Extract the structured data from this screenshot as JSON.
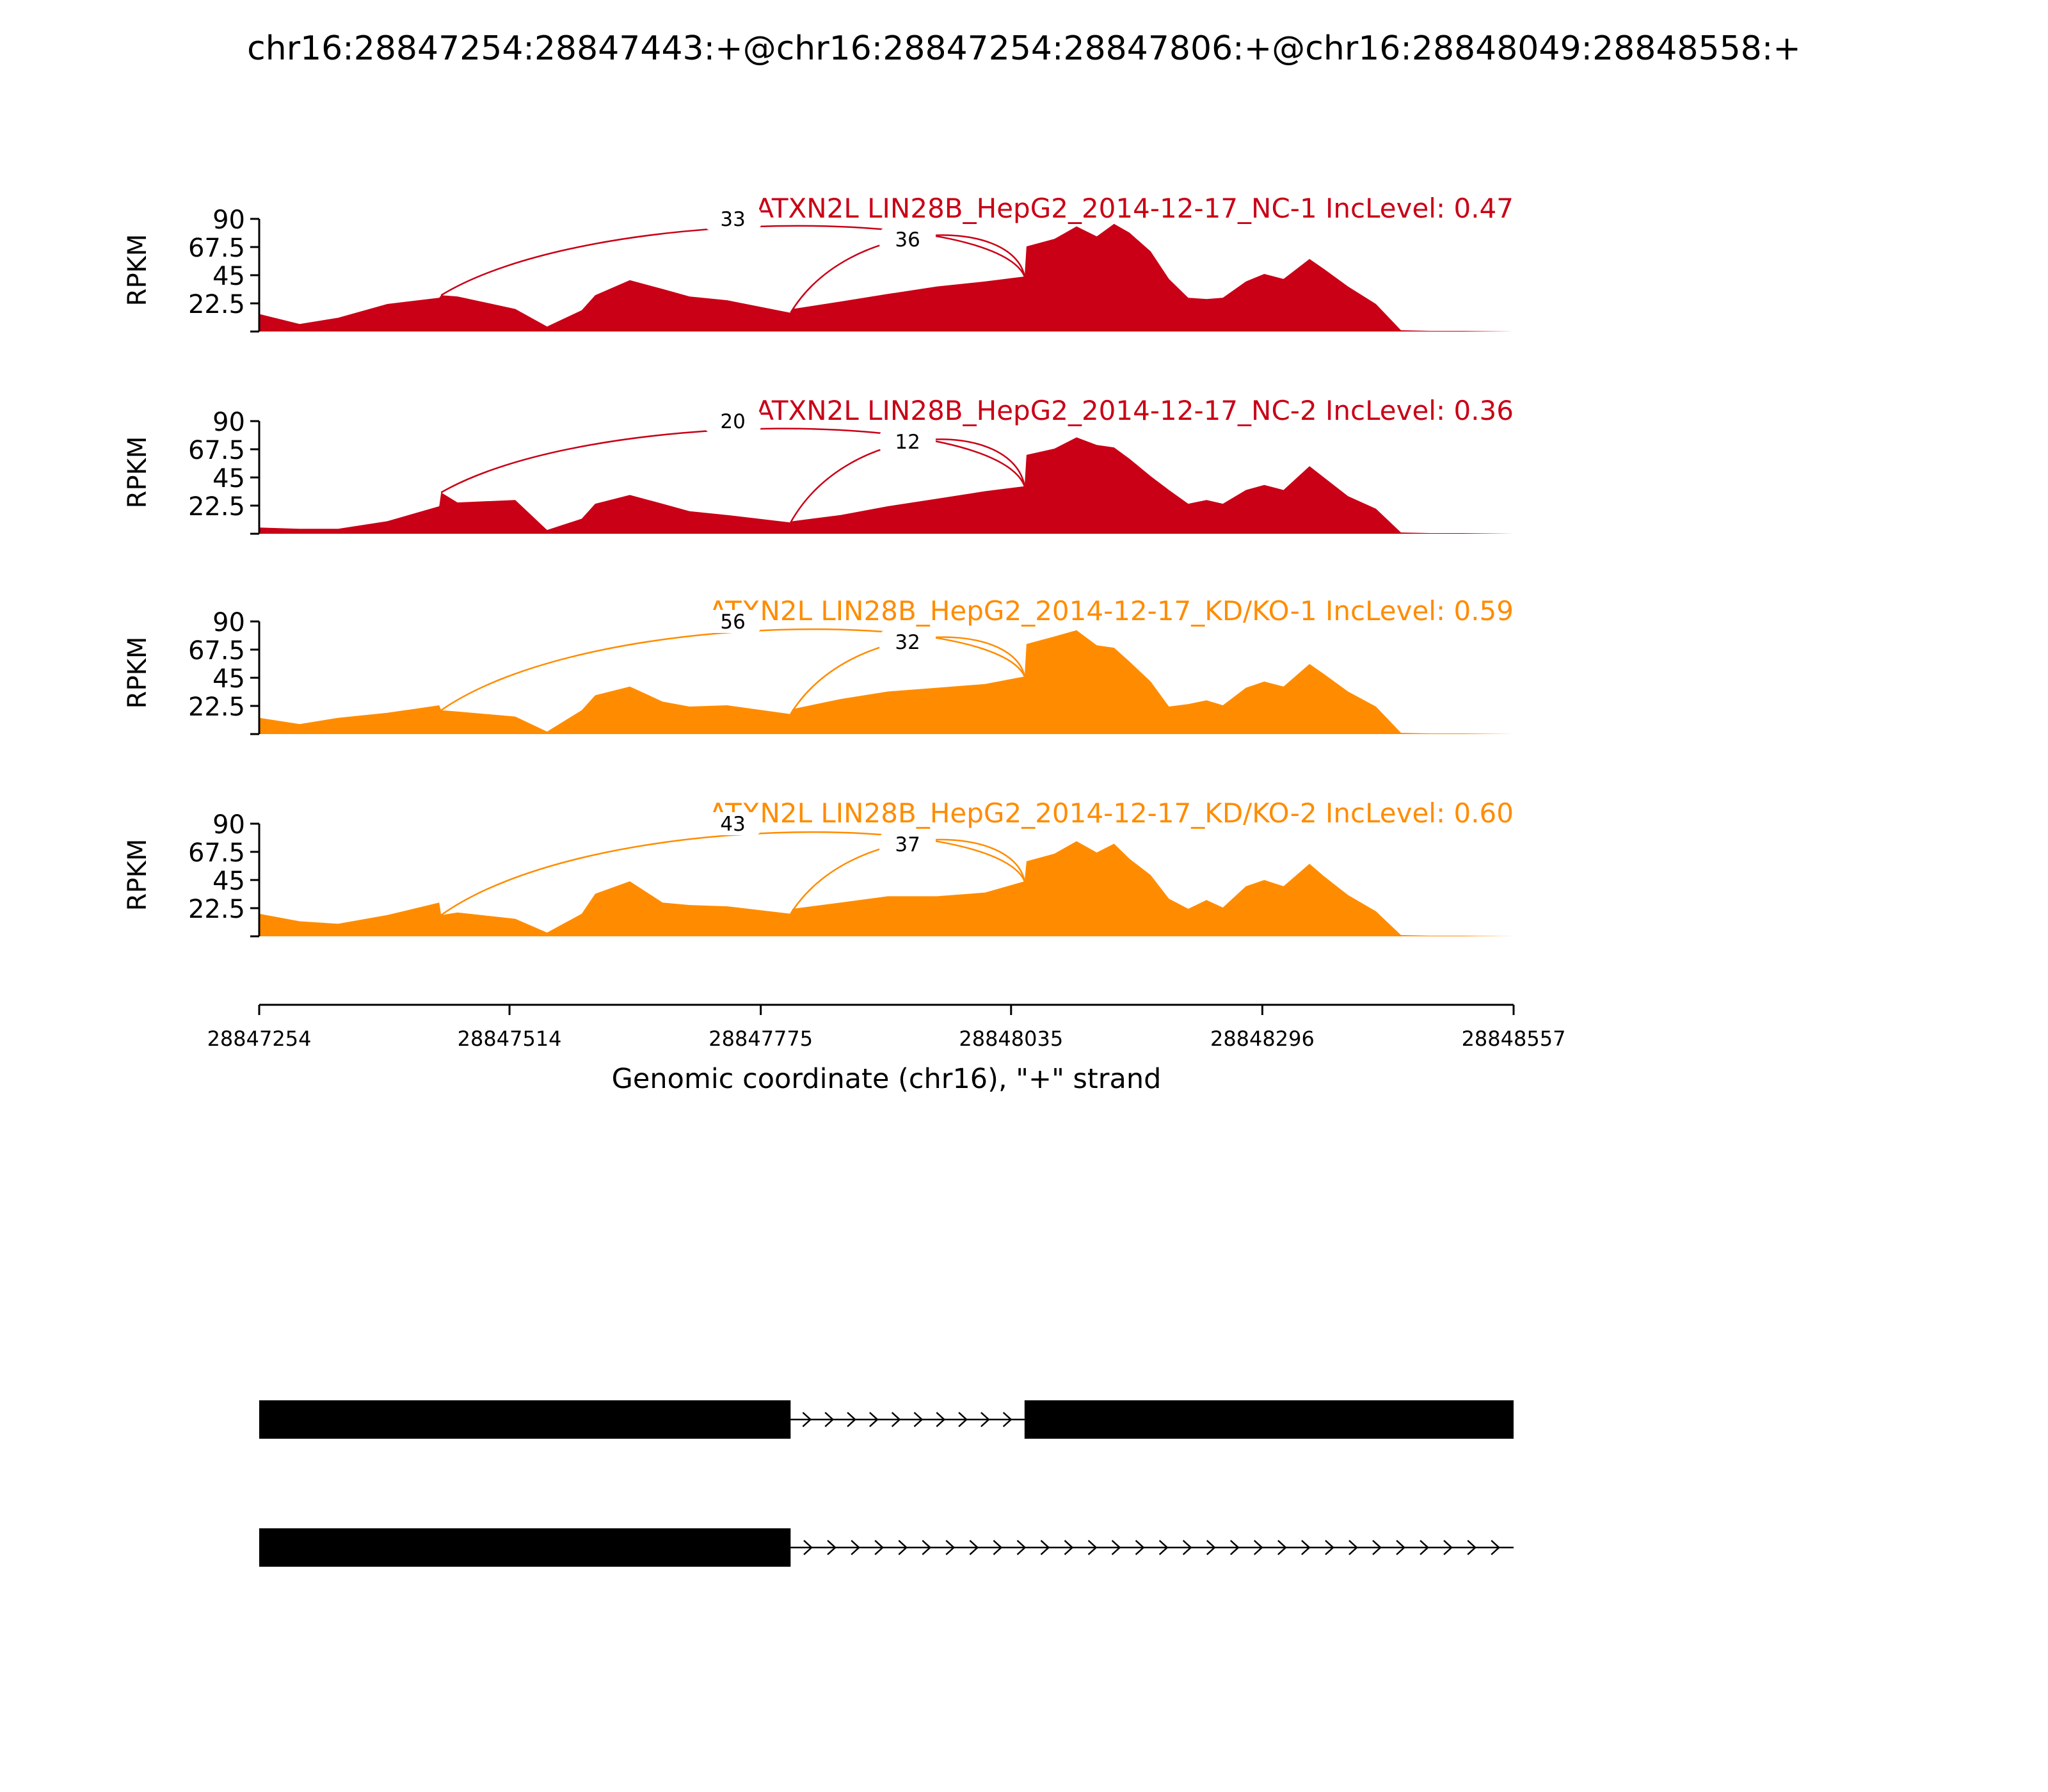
{
  "title": "chr16:28847254:28847443:+@chr16:28847254:28847806:+@chr16:28848049:28848558:+",
  "chart_data": {
    "type": "area",
    "xlabel": "Genomic coordinate (chr16), \"+\" strand",
    "ylabel": "RPKM",
    "xlim": [
      28847254,
      28848557
    ],
    "x_ticks": [
      "28847254",
      "28847514",
      "28847775",
      "28848035",
      "28848296",
      "28848557"
    ],
    "ylim": [
      0,
      90
    ],
    "y_ticks": [
      "22.5",
      "45",
      "67.5",
      "90"
    ],
    "grid": false,
    "junction_sites": [
      28847443,
      28847806,
      28848049
    ],
    "profile_x": [
      28847254,
      28847296,
      28847336,
      28847387,
      28847441,
      28847443,
      28847460,
      28847520,
      28847553,
      28847589,
      28847603,
      28847639,
      28847673,
      28847701,
      28847740,
      28847806,
      28847808,
      28847858,
      28847907,
      28847958,
      28848008,
      28848049,
      28848051,
      28848080,
      28848103,
      28848124,
      28848142,
      28848158,
      28848180,
      28848199,
      28848219,
      28848238,
      28848255,
      28848279,
      28848298,
      28848318,
      28848345,
      28848360,
      28848385,
      28848414,
      28848440,
      28848470,
      28848503,
      28848557
    ],
    "series": [
      {
        "name": "ATXN2L LIN28B_HepG2_2014-12-17_NC-1 IncLevel: 0.47",
        "color": "#c90016",
        "junctions": [
          {
            "start": 28847443,
            "end": 28848049,
            "count": 33
          },
          {
            "start": 28847806,
            "end": 28848049,
            "count": 36
          }
        ],
        "y": [
          14,
          6,
          11,
          22,
          27,
          29,
          28,
          18,
          4,
          17,
          29,
          41,
          34,
          28,
          25,
          15,
          18,
          24,
          30,
          36,
          40,
          44,
          68,
          74,
          84,
          76,
          86,
          79,
          64,
          42,
          27,
          26,
          27,
          40,
          46,
          42,
          58,
          50,
          36,
          22,
          1,
          0.5,
          0.5,
          0
        ]
      },
      {
        "name": "ATXN2L LIN28B_HepG2_2014-12-17_NC-2 IncLevel: 0.36",
        "color": "#c90016",
        "junctions": [
          {
            "start": 28847443,
            "end": 28848049,
            "count": 20
          },
          {
            "start": 28847806,
            "end": 28848049,
            "count": 12
          }
        ],
        "y": [
          5,
          4,
          4,
          10,
          22,
          33,
          25,
          27,
          3,
          12,
          24,
          31,
          24,
          18,
          15,
          9,
          10,
          15,
          22,
          28,
          34,
          38,
          63,
          68,
          77,
          71,
          69,
          60,
          46,
          35,
          24,
          27,
          24,
          35,
          39,
          35,
          54,
          45,
          30,
          20,
          1,
          0.5,
          0.5,
          0
        ]
      },
      {
        "name": "ATXN2L LIN28B_HepG2_2014-12-17_KD/KO-1 IncLevel: 0.59",
        "color": "#ff8c00",
        "junctions": [
          {
            "start": 28847443,
            "end": 28848049,
            "count": 56
          },
          {
            "start": 28847806,
            "end": 28848049,
            "count": 32
          }
        ],
        "y": [
          13,
          8,
          13,
          17,
          23,
          19,
          18,
          14,
          2,
          19,
          31,
          38,
          26,
          22,
          23,
          16,
          20,
          28,
          34,
          37,
          40,
          46,
          72,
          78,
          83,
          71,
          69,
          58,
          42,
          22,
          24,
          27,
          23,
          37,
          42,
          38,
          56,
          48,
          34,
          22,
          1,
          0.5,
          0.5,
          0
        ]
      },
      {
        "name": "ATXN2L LIN28B_HepG2_2014-12-17_KD/KO-2 IncLevel: 0.60",
        "color": "#ff8c00",
        "junctions": [
          {
            "start": 28847443,
            "end": 28848049,
            "count": 43
          },
          {
            "start": 28847806,
            "end": 28848049,
            "count": 37
          }
        ],
        "y": [
          18,
          12,
          10,
          17,
          27,
          17,
          19,
          14,
          3,
          18,
          34,
          44,
          27,
          25,
          24,
          18,
          22,
          27,
          32,
          32,
          35,
          44,
          60,
          66,
          76,
          67,
          74,
          62,
          49,
          30,
          22,
          29,
          23,
          40,
          45,
          40,
          58,
          48,
          33,
          20,
          1,
          0.5,
          0.5,
          0
        ]
      }
    ],
    "isoforms": [
      {
        "exons": [
          [
            28847254,
            28847806
          ],
          [
            28848049,
            28848557
          ]
        ],
        "intron_arrows": 10
      },
      {
        "exons": [
          [
            28847254,
            28847806
          ]
        ],
        "intron_arrows": 30
      }
    ]
  }
}
